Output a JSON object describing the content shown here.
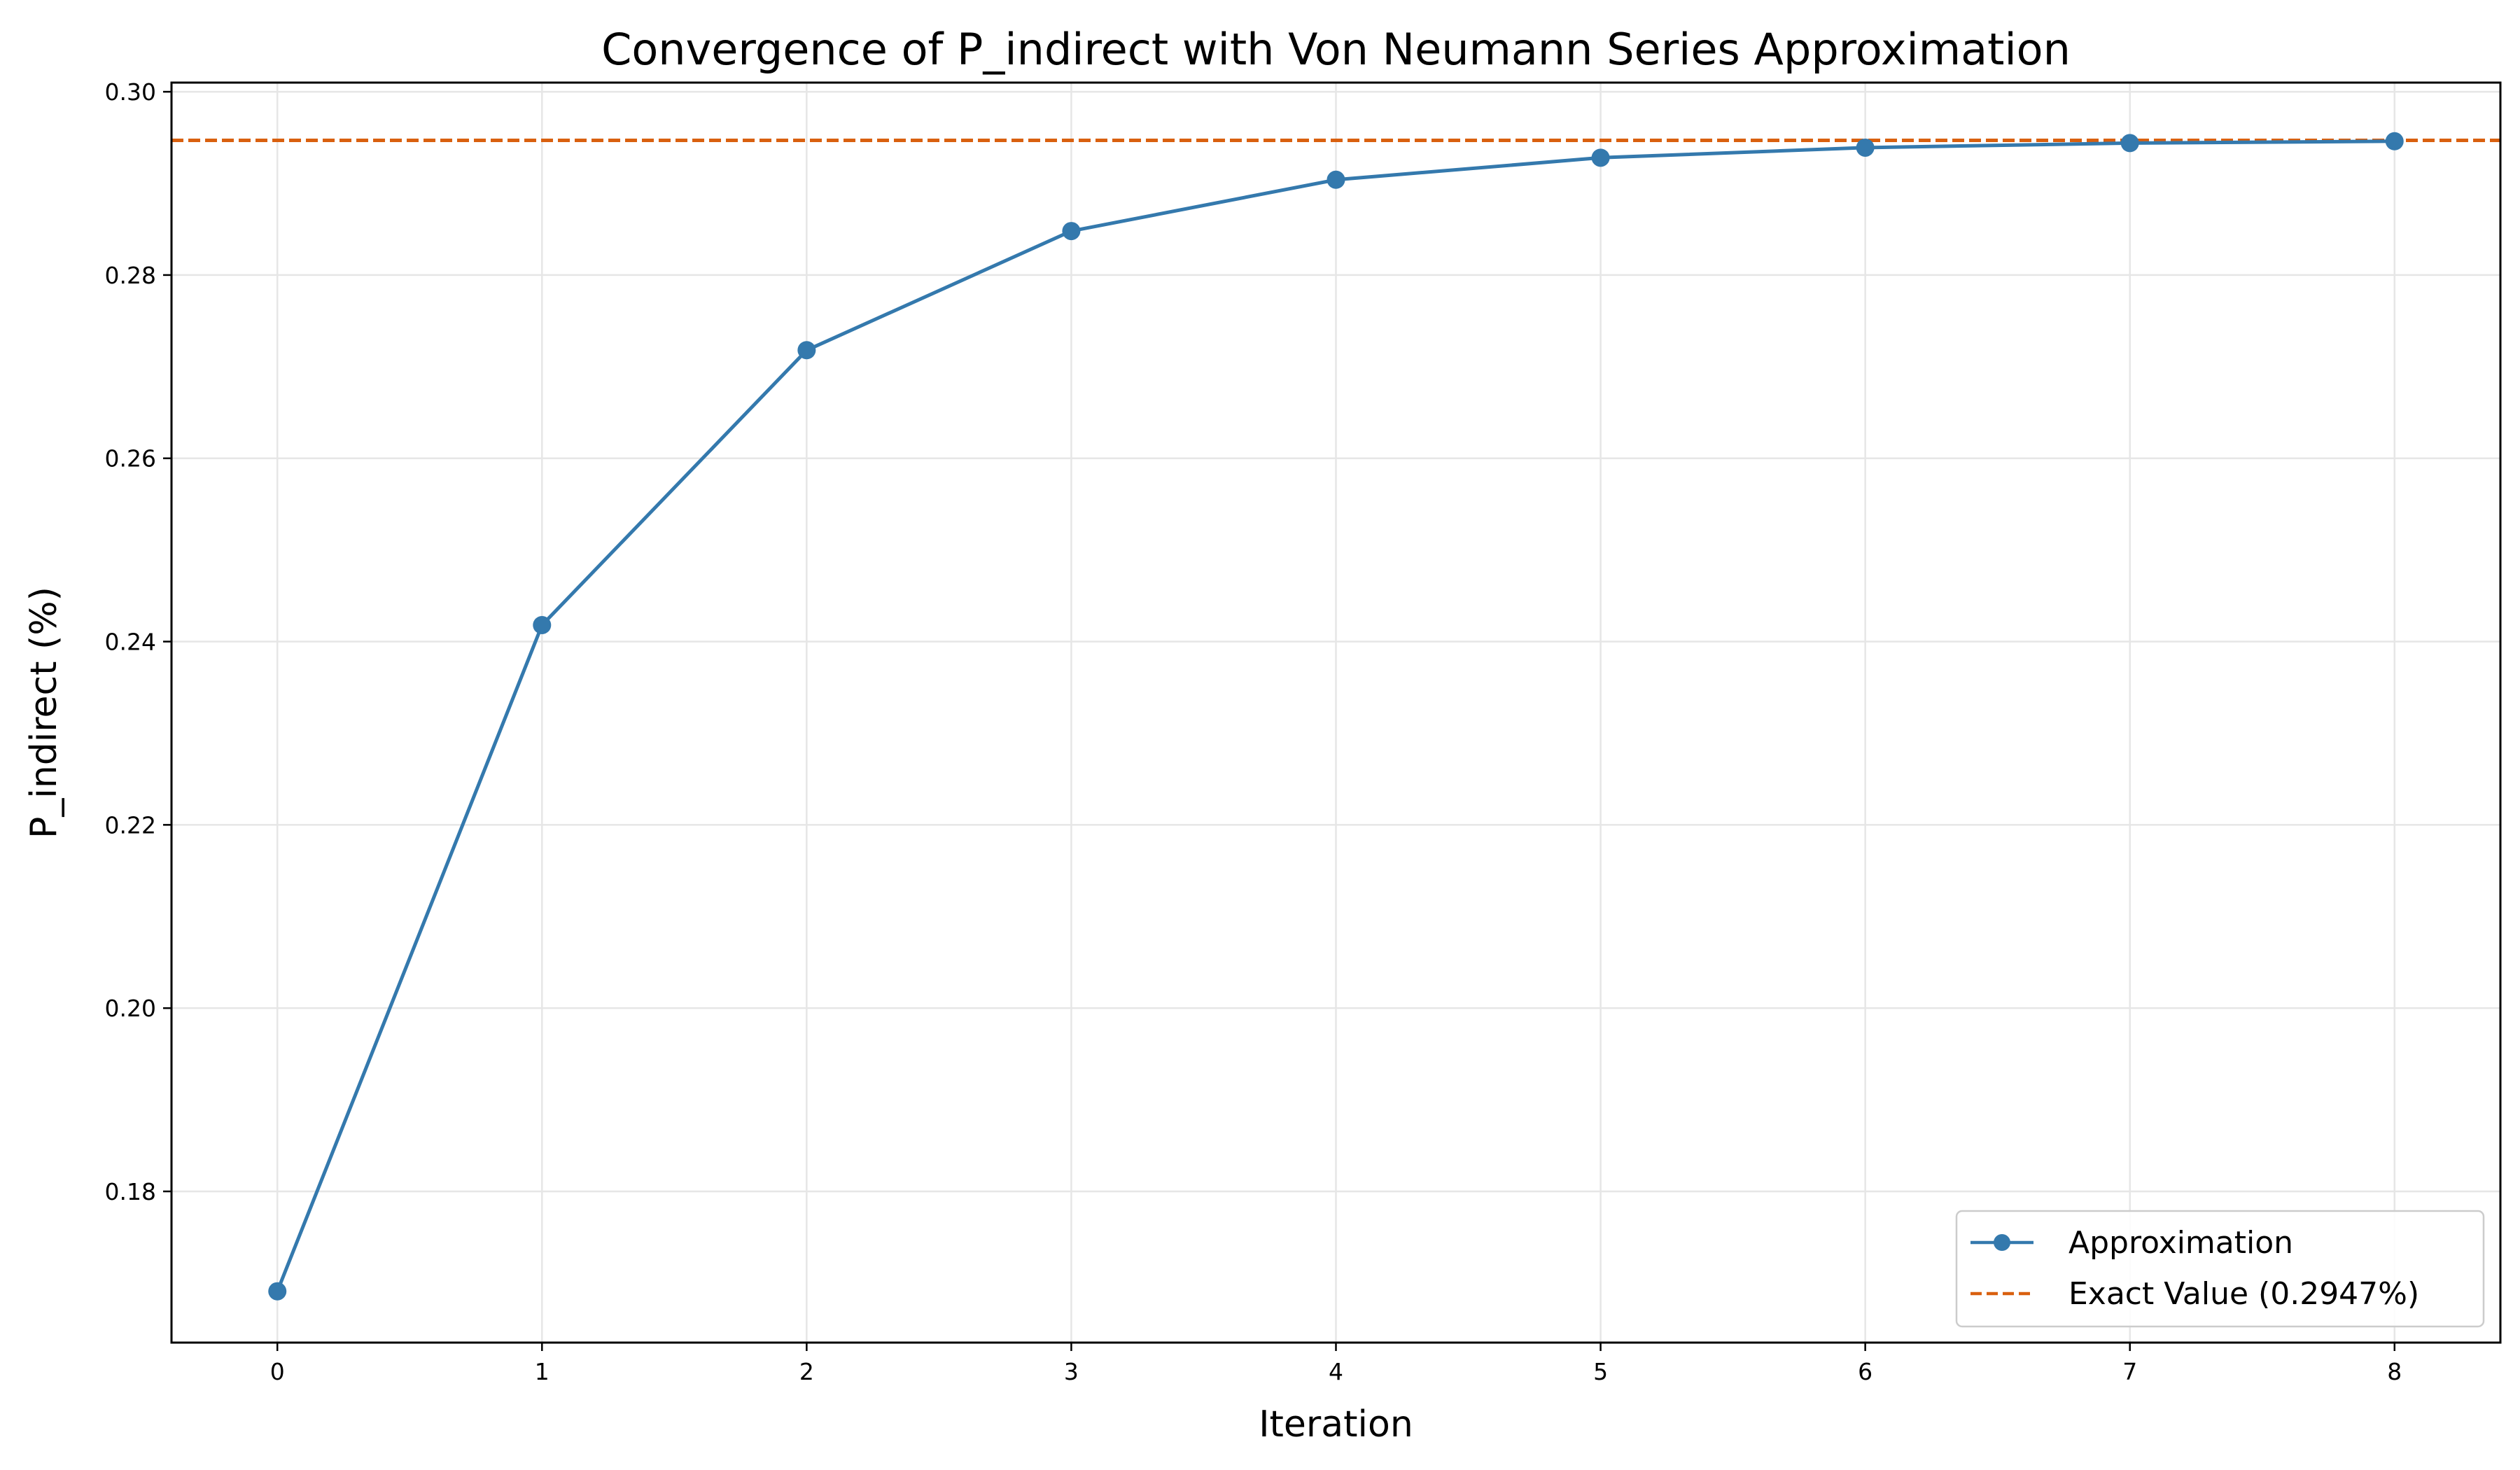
{
  "chart_data": {
    "type": "line",
    "title": "Convergence of P_indirect with Von Neumann Series Approximation",
    "xlabel": "Iteration",
    "ylabel": "P_indirect (%)",
    "xlim": [
      -0.4,
      8.4
    ],
    "ylim": [
      0.1635,
      0.301
    ],
    "x_ticks": [
      0,
      1,
      2,
      3,
      4,
      5,
      6,
      7,
      8
    ],
    "x_tick_labels": [
      "0",
      "1",
      "2",
      "3",
      "4",
      "5",
      "6",
      "7",
      "8"
    ],
    "y_ticks": [
      0.18,
      0.2,
      0.22,
      0.24,
      0.26,
      0.28,
      0.3
    ],
    "y_tick_labels": [
      "0.18",
      "0.20",
      "0.22",
      "0.24",
      "0.26",
      "0.28",
      "0.30"
    ],
    "grid": true,
    "legend_position": "bottom-right",
    "series": [
      {
        "name": "Approximation",
        "style": "solid line with circle markers",
        "color": "#3479ad",
        "x": [
          0,
          1,
          2,
          3,
          4,
          5,
          6,
          7,
          8
        ],
        "y": [
          0.1691,
          0.2418,
          0.2718,
          0.2848,
          0.2904,
          0.2928,
          0.2939,
          0.2944,
          0.2946
        ]
      },
      {
        "name": "Exact Value (0.2947%)",
        "style": "dashed horizontal line",
        "color": "#d9600f",
        "y": 0.2947
      }
    ]
  }
}
